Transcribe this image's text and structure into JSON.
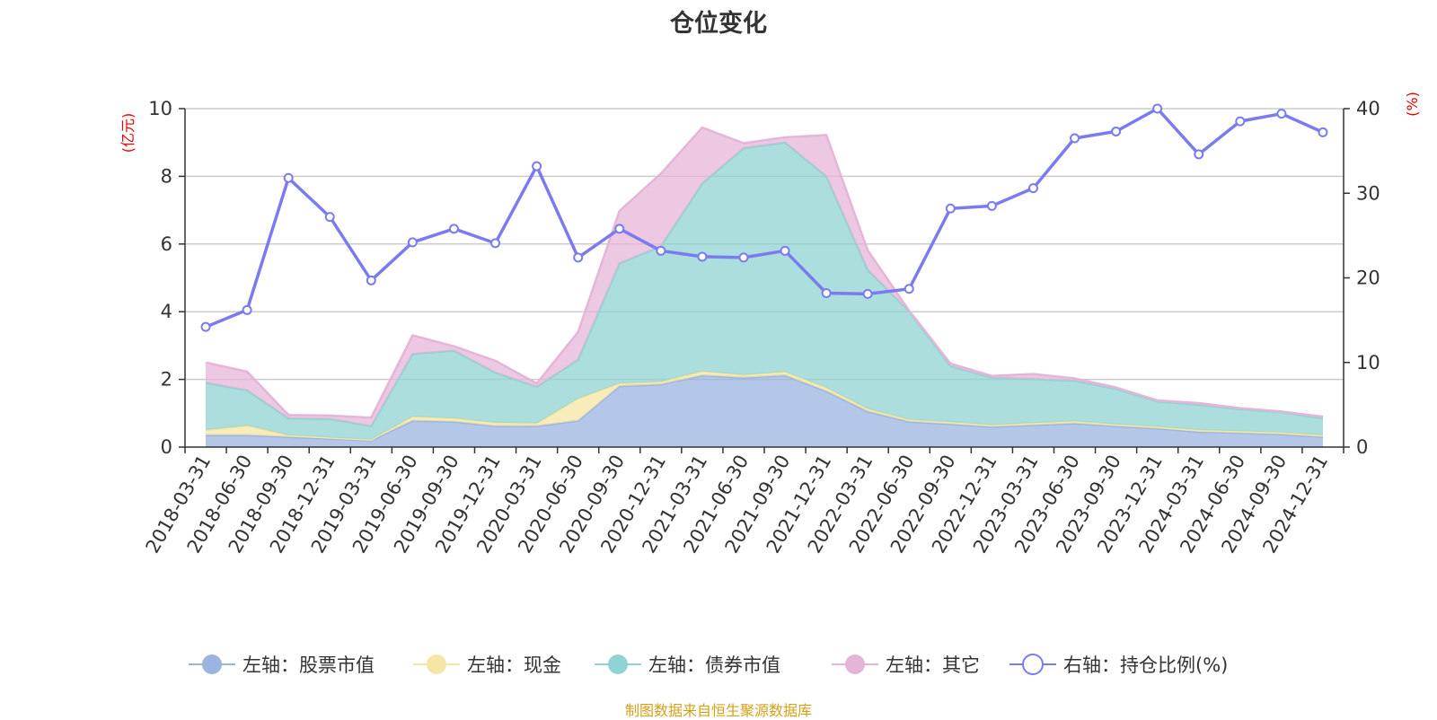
{
  "chart_data": {
    "type": "area",
    "title": "仓位变化",
    "categories": [
      "2018-03-31",
      "2018-06-30",
      "2018-09-30",
      "2018-12-31",
      "2019-03-31",
      "2019-06-30",
      "2019-09-30",
      "2019-12-31",
      "2020-03-31",
      "2020-06-30",
      "2020-09-30",
      "2020-12-31",
      "2021-03-31",
      "2021-06-30",
      "2021-09-30",
      "2021-12-31",
      "2022-03-31",
      "2022-06-30",
      "2022-09-30",
      "2022-12-31",
      "2023-03-31",
      "2023-06-30",
      "2023-09-30",
      "2023-12-31",
      "2024-03-31",
      "2024-06-30",
      "2024-09-30",
      "2024-12-31"
    ],
    "left_axis": {
      "unit": "(亿元)",
      "ylim": [
        0,
        10
      ],
      "ticks": [
        "0",
        "2",
        "4",
        "6",
        "8",
        "10"
      ]
    },
    "right_axis": {
      "unit": "(%)",
      "ylim": [
        0,
        40
      ],
      "ticks": [
        "0",
        "10",
        "20",
        "30",
        "40"
      ]
    },
    "series": [
      {
        "name": "左轴：股票市值",
        "axis": "left",
        "stacked": true,
        "color": "#9bb4e0",
        "values": [
          0.35,
          0.35,
          0.3,
          0.25,
          0.2,
          0.78,
          0.75,
          0.62,
          0.62,
          0.78,
          1.8,
          1.85,
          2.12,
          2.05,
          2.12,
          1.65,
          1.05,
          0.75,
          0.68,
          0.6,
          0.65,
          0.7,
          0.62,
          0.55,
          0.45,
          0.42,
          0.38,
          0.3
        ]
      },
      {
        "name": "左轴：现金",
        "axis": "left",
        "stacked": true,
        "color": "#f5e6a3",
        "values": [
          0.15,
          0.28,
          0.05,
          0.03,
          0.02,
          0.12,
          0.1,
          0.1,
          0.08,
          0.65,
          0.08,
          0.08,
          0.12,
          0.08,
          0.1,
          0.1,
          0.08,
          0.06,
          0.06,
          0.05,
          0.06,
          0.06,
          0.05,
          0.05,
          0.05,
          0.05,
          0.05,
          0.05
        ]
      },
      {
        "name": "左轴：债券市值",
        "axis": "left",
        "stacked": true,
        "color": "#90d3d3",
        "values": [
          1.4,
          1.05,
          0.5,
          0.55,
          0.4,
          1.85,
          2.0,
          1.48,
          1.08,
          1.15,
          3.55,
          4.0,
          5.55,
          6.7,
          6.78,
          6.25,
          4.1,
          3.2,
          1.65,
          1.4,
          1.3,
          1.2,
          1.05,
          0.75,
          0.75,
          0.65,
          0.6,
          0.5
        ]
      },
      {
        "name": "左轴：其它",
        "axis": "left",
        "stacked": true,
        "color": "#e5b5d8",
        "values": [
          0.6,
          0.55,
          0.1,
          0.1,
          0.25,
          0.55,
          0.13,
          0.35,
          0.1,
          0.82,
          1.55,
          2.15,
          1.65,
          0.15,
          0.15,
          1.22,
          0.58,
          0.02,
          0.08,
          0.05,
          0.15,
          0.07,
          0.04,
          0.03,
          0.05,
          0.03,
          0.02,
          0.05
        ]
      },
      {
        "name": "右轴：持仓比例(%)",
        "axis": "right",
        "type": "line",
        "color": "#7b7bf0",
        "values": [
          14.2,
          16.2,
          31.8,
          27.2,
          19.7,
          24.2,
          25.8,
          24.1,
          33.2,
          22.4,
          25.8,
          23.2,
          22.5,
          22.4,
          23.2,
          18.2,
          18.1,
          18.7,
          28.2,
          28.5,
          30.6,
          36.5,
          37.3,
          40.0,
          34.6,
          38.5,
          39.4,
          37.2
        ]
      }
    ]
  },
  "source_note": "制图数据来自恒生聚源数据库"
}
